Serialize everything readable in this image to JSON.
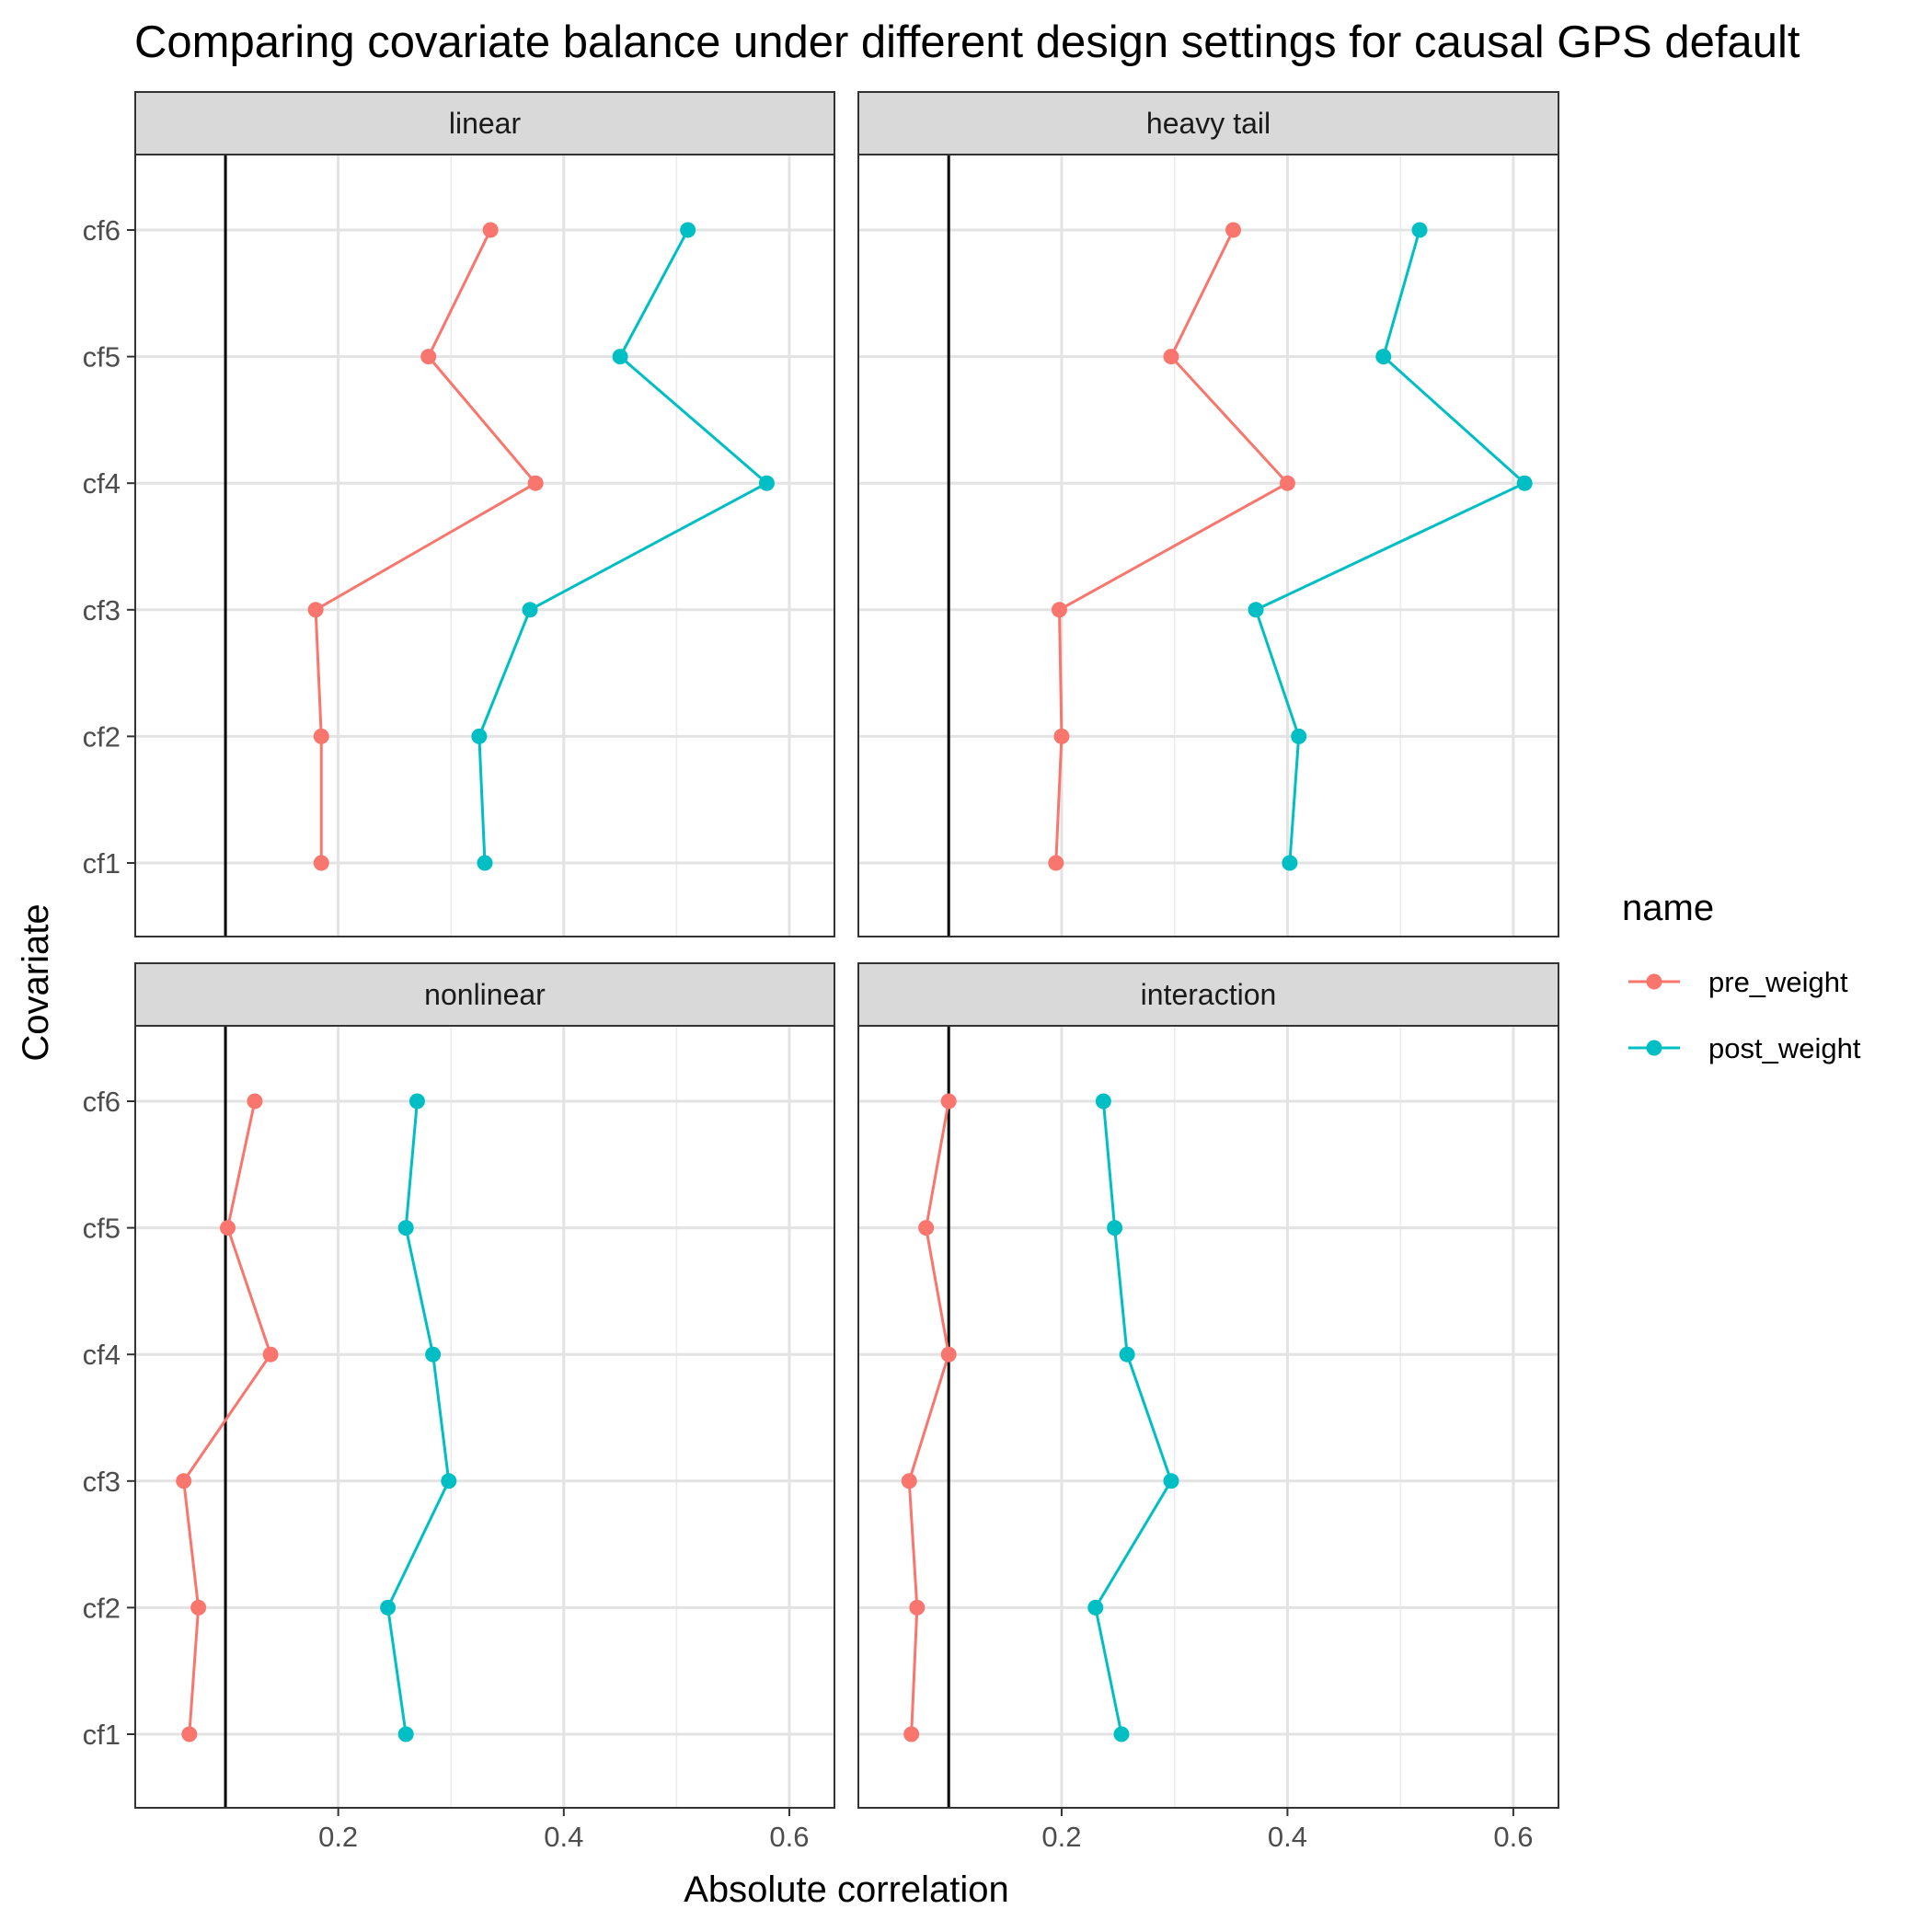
{
  "chart_data": {
    "type": "line",
    "title": "Comparing covariate balance under different design settings for causal GPS default",
    "xlabel": "Absolute correlation",
    "ylabel": "Covariate",
    "xlim": [
      0.02,
      0.64
    ],
    "x_ticks": [
      0.2,
      0.4,
      0.6
    ],
    "x_tick_labels": [
      "0.2",
      "0.4",
      "0.6"
    ],
    "x_minor_ticks": [
      0.1,
      0.3,
      0.5
    ],
    "categories": [
      "cf1",
      "cf2",
      "cf3",
      "cf4",
      "cf5",
      "cf6"
    ],
    "reference_line_x": 0.1,
    "grid": true,
    "legend": {
      "title": "name",
      "position": "right",
      "entries": [
        {
          "name": "pre_weight",
          "color": "#F8766D"
        },
        {
          "name": "post_weight",
          "color": "#00BFC4"
        }
      ]
    },
    "panels": [
      {
        "label": "linear",
        "series": [
          {
            "name": "pre_weight",
            "values": [
              0.185,
              0.185,
              0.18,
              0.375,
              0.28,
              0.335
            ]
          },
          {
            "name": "post_weight",
            "values": [
              0.33,
              0.325,
              0.37,
              0.58,
              0.45,
              0.51
            ]
          }
        ]
      },
      {
        "label": "heavy tail",
        "series": [
          {
            "name": "pre_weight",
            "values": [
              0.195,
              0.2,
              0.198,
              0.4,
              0.297,
              0.352
            ]
          },
          {
            "name": "post_weight",
            "values": [
              0.402,
              0.41,
              0.372,
              0.61,
              0.485,
              0.517
            ]
          }
        ]
      },
      {
        "label": "nonlinear",
        "series": [
          {
            "name": "pre_weight",
            "values": [
              0.068,
              0.076,
              0.063,
              0.14,
              0.102,
              0.126
            ]
          },
          {
            "name": "post_weight",
            "values": [
              0.26,
              0.244,
              0.298,
              0.284,
              0.26,
              0.27
            ]
          }
        ]
      },
      {
        "label": "interaction",
        "series": [
          {
            "name": "pre_weight",
            "values": [
              0.067,
              0.072,
              0.065,
              0.1,
              0.08,
              0.1
            ]
          },
          {
            "name": "post_weight",
            "values": [
              0.253,
              0.23,
              0.297,
              0.258,
              0.247,
              0.237
            ]
          }
        ]
      }
    ]
  }
}
